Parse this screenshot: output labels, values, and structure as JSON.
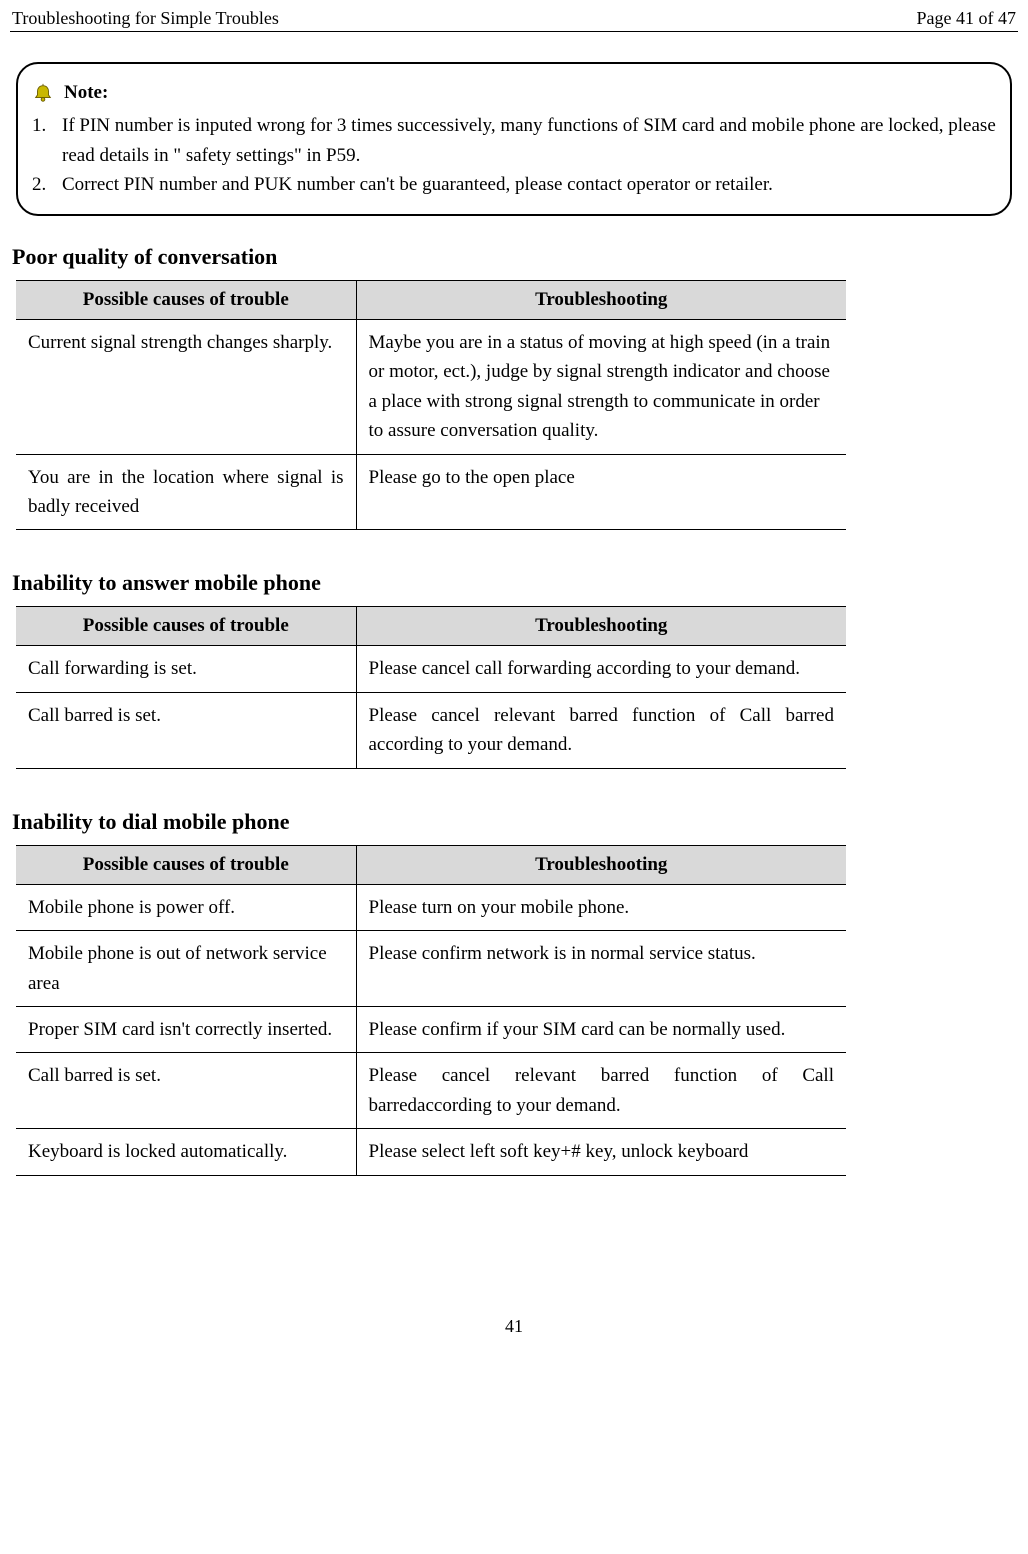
{
  "header": {
    "title": "Troubleshooting for Simple Troubles",
    "page_label": "Page 41 of 47"
  },
  "note": {
    "label": "Note:",
    "items": [
      "If PIN number is inputed wrong for 3 times successively, many functions of SIM card and mobile phone are locked, please read details in \" safety settings\" in P59.",
      "Correct PIN number and PUK number can't be guaranteed, please contact operator or retailer."
    ]
  },
  "columns": {
    "cause": "Possible causes of trouble",
    "fix": "Troubleshooting"
  },
  "sections": [
    {
      "heading": "Poor quality of conversation",
      "rows": [
        {
          "cause": "Current signal strength changes sharply.",
          "fix": "Maybe you are in a status of moving at high speed (in a train or motor, ect.), judge by signal strength indicator and choose a place with strong signal strength to communicate in order to assure conversation quality.",
          "cause_justify": false,
          "fix_justify": false
        },
        {
          "cause": "You are in the location where signal is badly received",
          "fix": "Please go to the open place",
          "cause_justify": true,
          "fix_justify": false
        }
      ]
    },
    {
      "heading": "Inability to answer mobile phone",
      "rows": [
        {
          "cause": "Call forwarding is set.",
          "fix": "Please cancel call forwarding according to your demand.",
          "cause_justify": false,
          "fix_justify": false
        },
        {
          "cause": "Call barred is set.",
          "fix": "Please cancel relevant barred function of Call barred according to your demand.",
          "cause_justify": false,
          "fix_justify": true
        }
      ]
    },
    {
      "heading": "Inability to dial mobile phone",
      "rows": [
        {
          "cause": "Mobile phone is power off.",
          "fix": "Please turn on your mobile phone.",
          "cause_justify": false,
          "fix_justify": false
        },
        {
          "cause": "Mobile phone is out of network service area",
          "fix": "Please confirm network is in normal service status.",
          "cause_justify": false,
          "fix_justify": false
        },
        {
          "cause": "Proper SIM card isn't correctly inserted.",
          "fix": "Please confirm if your SIM card can be normally used.",
          "cause_justify": false,
          "fix_justify": false
        },
        {
          "cause": "Call barred is set.",
          "fix": "Please cancel relevant barred function of Call barredaccording to your demand.",
          "cause_justify": false,
          "fix_justify": true
        },
        {
          "cause": "Keyboard is locked automatically.",
          "fix": "Please select left soft key+# key, unlock keyboard",
          "cause_justify": false,
          "fix_justify": false
        }
      ]
    }
  ],
  "footer": {
    "page_number": "41"
  },
  "colors": {
    "header_bg": "#d9d9d9",
    "border": "#000000",
    "text": "#000000",
    "background": "#ffffff"
  }
}
